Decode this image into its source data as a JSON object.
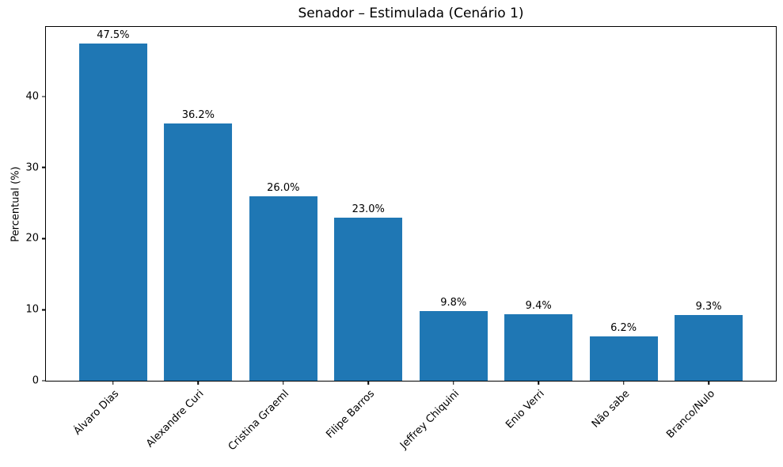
{
  "chart_data": {
    "type": "bar",
    "title": "Senador – Estimulada (Cenário 1)",
    "xlabel": "",
    "ylabel": "Percentual (%)",
    "categories": [
      "Álvaro Dias",
      "Alexandre Curi",
      "Cristina Graeml",
      "Filipe Barros",
      "Jeffrey Chiquini",
      "Enio Verri",
      "Não sabe",
      "Branco/Nulo"
    ],
    "values": [
      47.5,
      36.2,
      26.0,
      23.0,
      9.8,
      9.4,
      6.2,
      9.3
    ],
    "value_labels": [
      "47.5%",
      "36.2%",
      "26.0%",
      "23.0%",
      "9.8%",
      "9.4%",
      "6.2%",
      "9.3%"
    ],
    "yticks": [
      0,
      10,
      20,
      30,
      40
    ],
    "ylim": [
      0,
      49.8
    ],
    "xlim": [
      -0.79,
      7.79
    ],
    "bar_width": 0.8,
    "bar_color": "#1f77b4",
    "grid": false,
    "legend": null
  }
}
